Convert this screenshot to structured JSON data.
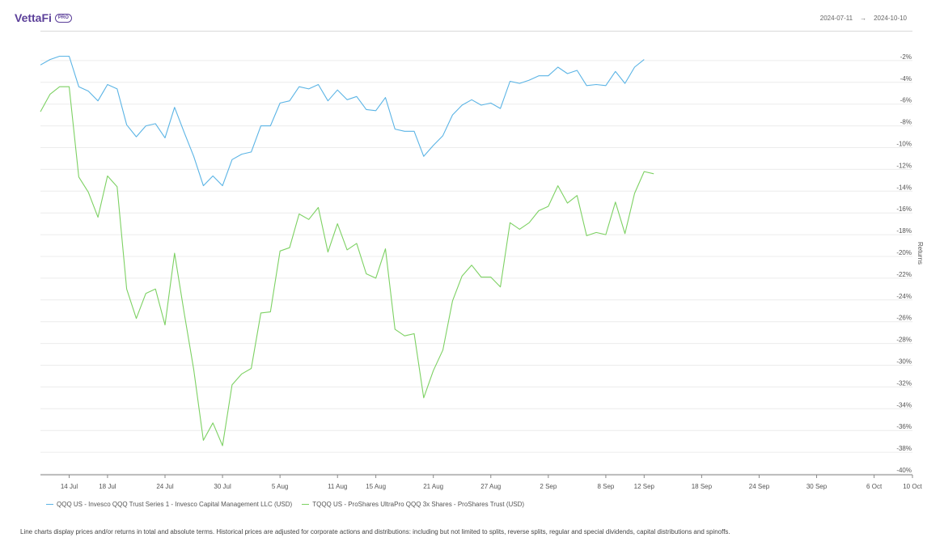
{
  "header": {
    "logo_text": "VettaFi",
    "logo_badge": "PRO",
    "date_start": "2024-07-11",
    "date_arrow": "→",
    "date_end": "2024-10-10"
  },
  "footnote": "Line charts display prices and/or returns in total and absolute terms. Historical prices are adjusted for corporate actions and distributions: including but not limited to splits, reverse splits, regular and special dividends, capital distributions and spinoffs.",
  "chart_data": {
    "type": "line",
    "title": "",
    "xlabel": "",
    "ylabel": "Returns",
    "y_unit": "%",
    "ylim": [
      -40,
      0
    ],
    "y_ticks": [
      -2,
      -4,
      -6,
      -8,
      -10,
      -12,
      -14,
      -16,
      -18,
      -20,
      -22,
      -24,
      -26,
      -28,
      -30,
      -32,
      -34,
      -36,
      -38,
      -40
    ],
    "xlim": [
      "2024-07-11",
      "2024-10-10"
    ],
    "x_ticks": [
      {
        "date": "2024-07-14",
        "label": "14 Jul"
      },
      {
        "date": "2024-07-18",
        "label": "18 Jul"
      },
      {
        "date": "2024-07-24",
        "label": "24 Jul"
      },
      {
        "date": "2024-07-30",
        "label": "30 Jul"
      },
      {
        "date": "2024-08-05",
        "label": "5 Aug"
      },
      {
        "date": "2024-08-11",
        "label": "11 Aug"
      },
      {
        "date": "2024-08-15",
        "label": "15 Aug"
      },
      {
        "date": "2024-08-21",
        "label": "21 Aug"
      },
      {
        "date": "2024-08-27",
        "label": "27 Aug"
      },
      {
        "date": "2024-09-02",
        "label": "2 Sep"
      },
      {
        "date": "2024-09-08",
        "label": "8 Sep"
      },
      {
        "date": "2024-09-12",
        "label": "12 Sep"
      },
      {
        "date": "2024-09-18",
        "label": "18 Sep"
      },
      {
        "date": "2024-09-24",
        "label": "24 Sep"
      },
      {
        "date": "2024-09-30",
        "label": "30 Sep"
      },
      {
        "date": "2024-10-06",
        "label": "6 Oct"
      },
      {
        "date": "2024-10-10",
        "label": "10 Oct"
      }
    ],
    "grid": true,
    "legend_position": "bottom-left",
    "series": [
      {
        "name": "QQQ US - Invesco QQQ Trust Series 1 - Invesco Capital Management LLC (USD)",
        "color": "#5bb4e5",
        "points": [
          [
            "2024-07-11",
            -2.4
          ],
          [
            "2024-07-12",
            -1.9
          ],
          [
            "2024-07-13",
            -1.6
          ],
          [
            "2024-07-14",
            -1.6
          ],
          [
            "2024-07-15",
            -4.4
          ],
          [
            "2024-07-16",
            -4.8
          ],
          [
            "2024-07-17",
            -5.7
          ],
          [
            "2024-07-18",
            -4.2
          ],
          [
            "2024-07-19",
            -4.6
          ],
          [
            "2024-07-20",
            -7.9
          ],
          [
            "2024-07-21",
            -9.0
          ],
          [
            "2024-07-22",
            -8.0
          ],
          [
            "2024-07-23",
            -7.8
          ],
          [
            "2024-07-24",
            -9.1
          ],
          [
            "2024-07-25",
            -6.3
          ],
          [
            "2024-07-26",
            -8.6
          ],
          [
            "2024-07-27",
            -10.8
          ],
          [
            "2024-07-28",
            -13.5
          ],
          [
            "2024-07-29",
            -12.6
          ],
          [
            "2024-07-30",
            -13.5
          ],
          [
            "2024-07-31",
            -11.1
          ],
          [
            "2024-08-01",
            -10.6
          ],
          [
            "2024-08-02",
            -10.4
          ],
          [
            "2024-08-03",
            -8.0
          ],
          [
            "2024-08-04",
            -8.0
          ],
          [
            "2024-08-05",
            -5.9
          ],
          [
            "2024-08-06",
            -5.7
          ],
          [
            "2024-08-07",
            -4.4
          ],
          [
            "2024-08-08",
            -4.6
          ],
          [
            "2024-08-09",
            -4.2
          ],
          [
            "2024-08-10",
            -5.7
          ],
          [
            "2024-08-11",
            -4.7
          ],
          [
            "2024-08-12",
            -5.6
          ],
          [
            "2024-08-13",
            -5.3
          ],
          [
            "2024-08-14",
            -6.5
          ],
          [
            "2024-08-15",
            -6.6
          ],
          [
            "2024-08-16",
            -5.4
          ],
          [
            "2024-08-17",
            -8.3
          ],
          [
            "2024-08-18",
            -8.5
          ],
          [
            "2024-08-19",
            -8.5
          ],
          [
            "2024-08-20",
            -10.8
          ],
          [
            "2024-08-21",
            -9.8
          ],
          [
            "2024-08-22",
            -8.9
          ],
          [
            "2024-08-23",
            -7.0
          ],
          [
            "2024-08-24",
            -6.1
          ],
          [
            "2024-08-25",
            -5.6
          ],
          [
            "2024-08-26",
            -6.1
          ],
          [
            "2024-08-27",
            -5.9
          ],
          [
            "2024-08-28",
            -6.4
          ],
          [
            "2024-08-29",
            -3.9
          ],
          [
            "2024-08-30",
            -4.1
          ],
          [
            "2024-08-31",
            -3.8
          ],
          [
            "2024-09-01",
            -3.4
          ],
          [
            "2024-09-02",
            -3.4
          ],
          [
            "2024-09-03",
            -2.6
          ],
          [
            "2024-09-04",
            -3.2
          ],
          [
            "2024-09-05",
            -2.9
          ],
          [
            "2024-09-06",
            -4.3
          ],
          [
            "2024-09-07",
            -4.2
          ],
          [
            "2024-09-08",
            -4.3
          ],
          [
            "2024-09-09",
            -3.0
          ],
          [
            "2024-09-10",
            -4.1
          ],
          [
            "2024-09-11",
            -2.6
          ],
          [
            "2024-09-12",
            -1.9
          ]
        ]
      },
      {
        "name": "TQQQ US - ProShares UltraPro QQQ 3x Shares - ProShares Trust (USD)",
        "color": "#7dd163",
        "points": [
          [
            "2024-07-11",
            -6.7
          ],
          [
            "2024-07-12",
            -5.1
          ],
          [
            "2024-07-13",
            -4.4
          ],
          [
            "2024-07-14",
            -4.4
          ],
          [
            "2024-07-15",
            -12.7
          ],
          [
            "2024-07-16",
            -14.1
          ],
          [
            "2024-07-17",
            -16.4
          ],
          [
            "2024-07-18",
            -12.6
          ],
          [
            "2024-07-19",
            -13.6
          ],
          [
            "2024-07-20",
            -23.0
          ],
          [
            "2024-07-21",
            -25.7
          ],
          [
            "2024-07-22",
            -23.4
          ],
          [
            "2024-07-23",
            -23.0
          ],
          [
            "2024-07-24",
            -26.3
          ],
          [
            "2024-07-25",
            -19.7
          ],
          [
            "2024-07-26",
            -25.2
          ],
          [
            "2024-07-27",
            -30.4
          ],
          [
            "2024-07-28",
            -36.9
          ],
          [
            "2024-07-29",
            -35.3
          ],
          [
            "2024-07-30",
            -37.4
          ],
          [
            "2024-07-31",
            -31.8
          ],
          [
            "2024-08-01",
            -30.8
          ],
          [
            "2024-08-02",
            -30.3
          ],
          [
            "2024-08-03",
            -25.2
          ],
          [
            "2024-08-04",
            -25.1
          ],
          [
            "2024-08-05",
            -19.5
          ],
          [
            "2024-08-06",
            -19.2
          ],
          [
            "2024-08-07",
            -16.1
          ],
          [
            "2024-08-08",
            -16.6
          ],
          [
            "2024-08-09",
            -15.5
          ],
          [
            "2024-08-10",
            -19.6
          ],
          [
            "2024-08-11",
            -17.0
          ],
          [
            "2024-08-12",
            -19.4
          ],
          [
            "2024-08-13",
            -18.8
          ],
          [
            "2024-08-14",
            -21.6
          ],
          [
            "2024-08-15",
            -22.0
          ],
          [
            "2024-08-16",
            -19.3
          ],
          [
            "2024-08-17",
            -26.7
          ],
          [
            "2024-08-18",
            -27.3
          ],
          [
            "2024-08-19",
            -27.1
          ],
          [
            "2024-08-20",
            -33.0
          ],
          [
            "2024-08-21",
            -30.5
          ],
          [
            "2024-08-22",
            -28.6
          ],
          [
            "2024-08-23",
            -24.1
          ],
          [
            "2024-08-24",
            -21.8
          ],
          [
            "2024-08-25",
            -20.8
          ],
          [
            "2024-08-26",
            -21.9
          ],
          [
            "2024-08-27",
            -21.9
          ],
          [
            "2024-08-28",
            -22.8
          ],
          [
            "2024-08-29",
            -16.9
          ],
          [
            "2024-08-30",
            -17.5
          ],
          [
            "2024-08-31",
            -16.9
          ],
          [
            "2024-09-01",
            -15.8
          ],
          [
            "2024-09-02",
            -15.4
          ],
          [
            "2024-09-03",
            -13.5
          ],
          [
            "2024-09-04",
            -15.1
          ],
          [
            "2024-09-05",
            -14.4
          ],
          [
            "2024-09-06",
            -18.1
          ],
          [
            "2024-09-07",
            -17.8
          ],
          [
            "2024-09-08",
            -18.0
          ],
          [
            "2024-09-09",
            -15.0
          ],
          [
            "2024-09-10",
            -17.9
          ],
          [
            "2024-09-11",
            -14.2
          ],
          [
            "2024-09-12",
            -12.2
          ],
          [
            "2024-09-13",
            -12.4
          ]
        ]
      }
    ]
  }
}
